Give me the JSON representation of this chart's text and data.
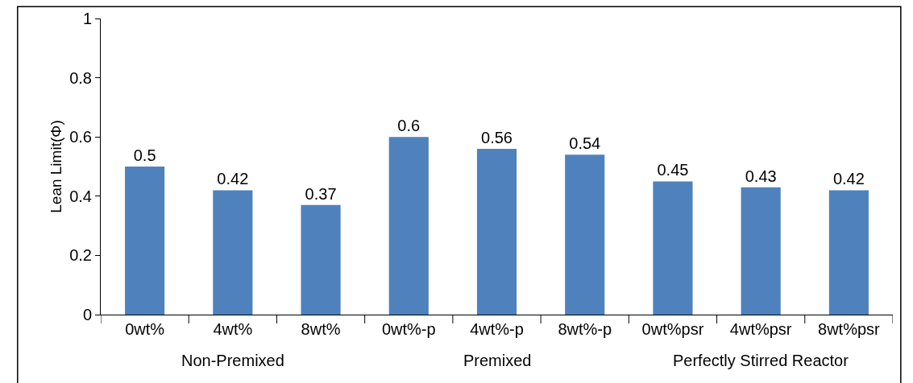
{
  "chart_data": {
    "type": "bar",
    "ylabel": "Lean Limit(Φ)",
    "categories": [
      "0wt%",
      "4wt%",
      "8wt%",
      "0wt%-p",
      "4wt%-p",
      "8wt%-p",
      "0wt%psr",
      "4wt%psr",
      "8wt%psr"
    ],
    "values": [
      0.5,
      0.42,
      0.37,
      0.6,
      0.56,
      0.54,
      0.45,
      0.43,
      0.42
    ],
    "color": "#4f81bd",
    "ylim": [
      0,
      1
    ],
    "yticks": [
      0,
      0.2,
      0.4,
      0.6,
      0.8,
      1
    ],
    "data_labels": true,
    "grid": false,
    "annotations": [
      "Non-Premixed",
      "Premixed",
      "Perfectly Stirred Reactor"
    ]
  }
}
